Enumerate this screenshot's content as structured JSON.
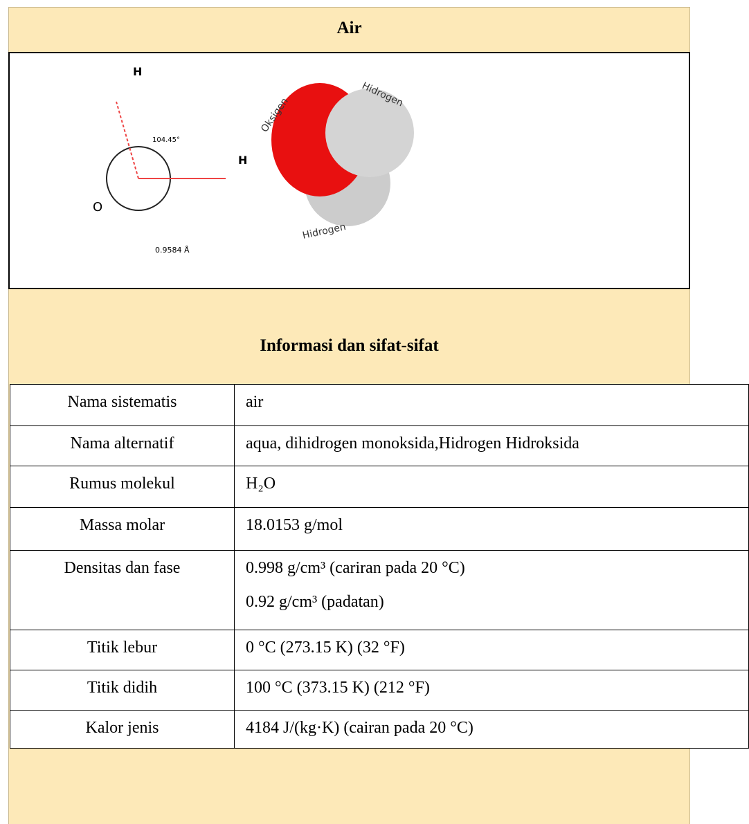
{
  "header": {
    "title": "Air"
  },
  "image": {
    "labels": {
      "h_top": "H",
      "angle": "104.45°",
      "h_right": "H",
      "o": "O",
      "length": "0.9584 Å",
      "oksigen": "Oksigen",
      "hidrogen_top": "Hidrogen",
      "hidrogen_bottom": "Hidrogen"
    }
  },
  "section": {
    "title": "Informasi dan sifat-sifat"
  },
  "table": {
    "rows": [
      {
        "label": "Nama sistematis",
        "lines": [
          "air"
        ]
      },
      {
        "label": "Nama alternatif",
        "lines": [
          "aqua, dihidrogen monoksida,Hidrogen Hidroksida"
        ]
      },
      {
        "label": "Rumus molekul",
        "lines": [
          "H₂O"
        ]
      },
      {
        "label": "Massa molar",
        "lines": [
          "18.0153 g/mol"
        ]
      },
      {
        "label": "Densitas dan fase",
        "lines": [
          "0.998 g/cm³ (cariran pada 20 °C)",
          "0.92 g/cm³ (padatan)"
        ]
      },
      {
        "label": "Titik lebur",
        "lines": [
          "0 °C (273.15 K) (32 °F)"
        ]
      },
      {
        "label": "Titik didih",
        "lines": [
          "100 °C (373.15 K) (212 °F)"
        ]
      },
      {
        "label": "Kalor jenis",
        "lines": [
          "4184 J/(kg·K) (cairan pada 20 °C)"
        ]
      }
    ]
  }
}
